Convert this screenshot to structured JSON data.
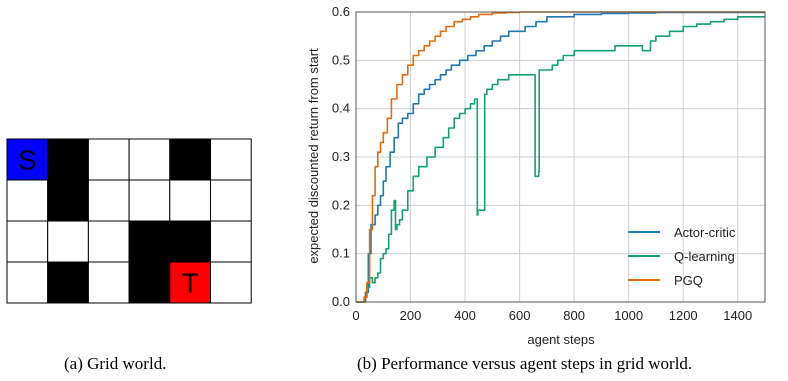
{
  "grid_world": {
    "rows": 4,
    "cols": 6,
    "cells": [
      [
        "S",
        "X",
        "",
        "",
        "X",
        ""
      ],
      [
        "",
        "X",
        "",
        "",
        "",
        ""
      ],
      [
        "",
        "",
        "",
        "X",
        "X",
        ""
      ],
      [
        "",
        "X",
        "",
        "X",
        "T",
        ""
      ]
    ],
    "start_label": "S",
    "target_label": "T",
    "colors": {
      "wall": "#000000",
      "free": "#ffffff",
      "start": "#0000ff",
      "target": "#ff0000"
    }
  },
  "captions": {
    "a": "(a) Grid world.",
    "b": "(b) Performance versus agent steps in grid world."
  },
  "chart_data": {
    "type": "line",
    "title": "",
    "xlabel": "agent steps",
    "ylabel": "expected discounted return from start",
    "xlim": [
      0,
      1500
    ],
    "ylim": [
      0,
      0.6
    ],
    "xticks": [
      0,
      200,
      400,
      600,
      800,
      1000,
      1200,
      1400
    ],
    "yticks": [
      0.0,
      0.1,
      0.2,
      0.3,
      0.4,
      0.5,
      0.6
    ],
    "xtick_labels": [
      "0",
      "200",
      "400",
      "600",
      "800",
      "1000",
      "1200",
      "1400"
    ],
    "ytick_labels": [
      "0.0",
      "0.1",
      "0.2",
      "0.3",
      "0.4",
      "0.5",
      "0.6"
    ],
    "grid": true,
    "legend_position": "bottom-right",
    "series": [
      {
        "name": "Actor-critic",
        "color": "#1f77b4",
        "x": [
          0,
          20,
          35,
          45,
          55,
          70,
          80,
          90,
          100,
          110,
          125,
          140,
          155,
          170,
          190,
          210,
          230,
          250,
          270,
          290,
          310,
          330,
          350,
          380,
          410,
          440,
          470,
          500,
          530,
          560,
          590,
          620,
          660,
          700,
          750,
          800,
          900,
          1000,
          1100,
          1200,
          1300,
          1400,
          1500
        ],
        "y": [
          0.0,
          0.0,
          0.02,
          0.1,
          0.16,
          0.18,
          0.2,
          0.22,
          0.25,
          0.28,
          0.31,
          0.34,
          0.37,
          0.38,
          0.39,
          0.41,
          0.43,
          0.44,
          0.45,
          0.46,
          0.47,
          0.48,
          0.49,
          0.5,
          0.51,
          0.52,
          0.53,
          0.54,
          0.55,
          0.56,
          0.56,
          0.57,
          0.58,
          0.59,
          0.59,
          0.595,
          0.597,
          0.598,
          0.599,
          0.599,
          0.599,
          0.599,
          0.599
        ]
      },
      {
        "name": "Q-learning",
        "color": "#12a270",
        "x": [
          0,
          20,
          30,
          40,
          50,
          60,
          70,
          80,
          90,
          100,
          110,
          120,
          130,
          140,
          145,
          150,
          160,
          170,
          190,
          210,
          230,
          260,
          290,
          320,
          340,
          360,
          380,
          400,
          420,
          435,
          445,
          447,
          455,
          470,
          472,
          480,
          500,
          520,
          540,
          560,
          580,
          600,
          620,
          640,
          655,
          657,
          670,
          672,
          680,
          700,
          720,
          740,
          760,
          780,
          800,
          830,
          860,
          900,
          950,
          1000,
          1050,
          1080,
          1100,
          1150,
          1200,
          1250,
          1300,
          1350,
          1400,
          1450,
          1500
        ],
        "y": [
          0.0,
          0.0,
          0.01,
          0.03,
          0.05,
          0.04,
          0.05,
          0.06,
          0.09,
          0.1,
          0.11,
          0.14,
          0.19,
          0.21,
          0.15,
          0.16,
          0.17,
          0.19,
          0.23,
          0.26,
          0.28,
          0.3,
          0.32,
          0.34,
          0.36,
          0.38,
          0.39,
          0.4,
          0.41,
          0.42,
          0.18,
          0.19,
          0.19,
          0.19,
          0.43,
          0.44,
          0.45,
          0.46,
          0.46,
          0.47,
          0.47,
          0.47,
          0.47,
          0.47,
          0.47,
          0.26,
          0.27,
          0.48,
          0.48,
          0.48,
          0.49,
          0.5,
          0.51,
          0.51,
          0.52,
          0.52,
          0.52,
          0.52,
          0.53,
          0.53,
          0.52,
          0.54,
          0.55,
          0.56,
          0.57,
          0.575,
          0.58,
          0.585,
          0.59,
          0.59,
          0.59
        ]
      },
      {
        "name": "PGQ",
        "color": "#e46c0a",
        "x": [
          0,
          20,
          30,
          40,
          50,
          60,
          70,
          80,
          90,
          100,
          115,
          130,
          150,
          170,
          190,
          210,
          230,
          250,
          270,
          290,
          310,
          330,
          360,
          390,
          420,
          450,
          500,
          550,
          600,
          650,
          700,
          800,
          1000,
          1200,
          1500
        ],
        "y": [
          0.0,
          0.0,
          0.01,
          0.04,
          0.15,
          0.22,
          0.28,
          0.31,
          0.33,
          0.35,
          0.38,
          0.42,
          0.45,
          0.47,
          0.49,
          0.51,
          0.52,
          0.53,
          0.54,
          0.55,
          0.56,
          0.57,
          0.58,
          0.585,
          0.59,
          0.595,
          0.598,
          0.599,
          0.6,
          0.6,
          0.6,
          0.6,
          0.6,
          0.6,
          0.6
        ]
      }
    ]
  }
}
